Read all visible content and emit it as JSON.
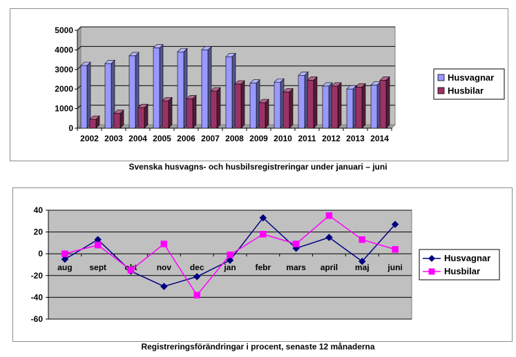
{
  "chart_data": [
    {
      "type": "bar",
      "caption": "Svenska husvagns- och husbilsregistreringar under januari – juni",
      "categories": [
        "2002",
        "2003",
        "2004",
        "2005",
        "2006",
        "2007",
        "2008",
        "2009",
        "2010",
        "2011",
        "2012",
        "2013",
        "2014"
      ],
      "series": [
        {
          "name": "Husvagnar",
          "values": [
            3200,
            3300,
            3700,
            4100,
            3900,
            4000,
            3650,
            2300,
            2350,
            2700,
            2150,
            2000,
            2200
          ]
        },
        {
          "name": "Husbilar",
          "values": [
            450,
            750,
            1050,
            1400,
            1500,
            1900,
            2250,
            1300,
            1850,
            2450,
            2150,
            2100,
            2450
          ]
        }
      ],
      "ylim": [
        0,
        5000
      ],
      "yticks": [
        0,
        1000,
        2000,
        3000,
        4000,
        5000
      ],
      "legend": "right",
      "colors": {
        "Husvagnar": "#9999ff",
        "Husbilar": "#993366",
        "plot_bg": "#c0c0c0"
      },
      "grid": true
    },
    {
      "type": "line",
      "caption": "Registreringsförändringar i procent, senaste 12 månaderna",
      "categories": [
        "aug",
        "sept",
        "okt",
        "nov",
        "dec",
        "jan",
        "febr",
        "mars",
        "april",
        "maj",
        "juni"
      ],
      "series": [
        {
          "name": "Husvagnar",
          "values": [
            -5,
            13,
            -16,
            -30,
            -21,
            -6,
            33,
            5,
            15,
            -7,
            27
          ]
        },
        {
          "name": "Husbilar",
          "values": [
            0,
            8,
            -15,
            9,
            -38,
            -1,
            18,
            9,
            35,
            13,
            4
          ]
        }
      ],
      "ylim": [
        -60,
        40
      ],
      "yticks": [
        -60,
        -40,
        -20,
        0,
        20,
        40
      ],
      "legend": "right",
      "colors": {
        "Husvagnar": "#000080",
        "Husbilar": "#ff00ff",
        "plot_bg": "#c0c0c0"
      },
      "grid": true
    }
  ]
}
